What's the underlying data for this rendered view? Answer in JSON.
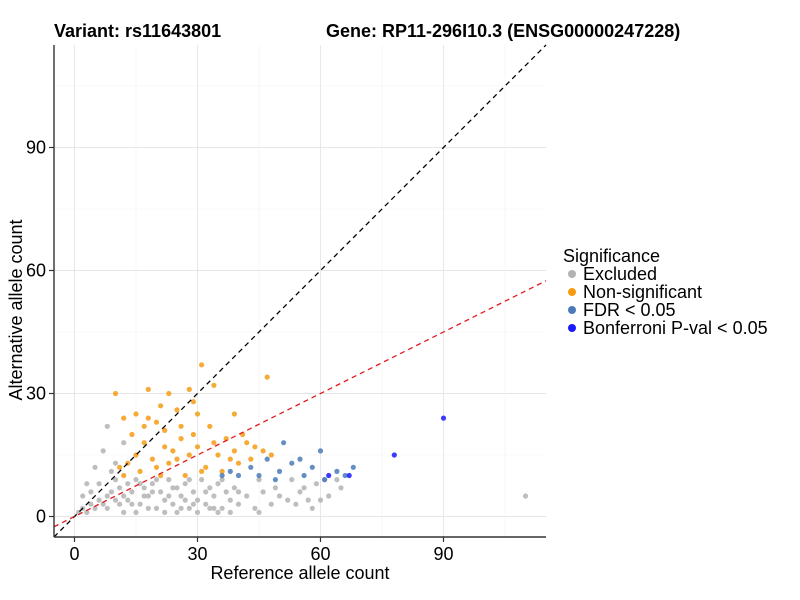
{
  "chart_data": {
    "type": "scatter",
    "title_left": "Variant: rs11643801",
    "title_right": "Gene: RP11-296I10.3 (ENSG00000247228)",
    "xlabel": "Reference allele count",
    "ylabel": "Alternative allele count",
    "xlim": [
      -5,
      115
    ],
    "ylim": [
      -5,
      115
    ],
    "xticks": [
      0,
      30,
      60,
      90
    ],
    "yticks": [
      0,
      30,
      60,
      90
    ],
    "grid": true,
    "legend": {
      "title": "Significance",
      "placement": "right",
      "entries": [
        {
          "key": "excluded",
          "label": "Excluded",
          "color": "#b3b3b3"
        },
        {
          "key": "nonsig",
          "label": "Non-significant",
          "color": "#f39c12"
        },
        {
          "key": "fdr",
          "label": "FDR < 0.05",
          "color": "#4a7bb7"
        },
        {
          "key": "bonf",
          "label": "Bonferroni P-val < 0.05",
          "color": "#1a1aff"
        }
      ]
    },
    "reference_lines": [
      {
        "name": "identity line",
        "slope": 1.0,
        "intercept": 0,
        "color": "#000000",
        "dash": "dashed"
      },
      {
        "name": "fit line",
        "slope": 0.5,
        "intercept": 0,
        "color": "#e31a1c",
        "dash": "dashed"
      }
    ],
    "series": [
      {
        "name": "Excluded",
        "color": "#b3b3b3",
        "points": [
          [
            1,
            1
          ],
          [
            2,
            2
          ],
          [
            3,
            1
          ],
          [
            4,
            3
          ],
          [
            5,
            2
          ],
          [
            6,
            4
          ],
          [
            7,
            3
          ],
          [
            8,
            5
          ],
          [
            9,
            6
          ],
          [
            10,
            4
          ],
          [
            11,
            7
          ],
          [
            12,
            5
          ],
          [
            13,
            8
          ],
          [
            14,
            6
          ],
          [
            15,
            9
          ],
          [
            16,
            3
          ],
          [
            17,
            7
          ],
          [
            18,
            5
          ],
          [
            19,
            8
          ],
          [
            20,
            2
          ],
          [
            21,
            6
          ],
          [
            22,
            4
          ],
          [
            23,
            9
          ],
          [
            24,
            3
          ],
          [
            25,
            7
          ],
          [
            26,
            5
          ],
          [
            27,
            8
          ],
          [
            28,
            2
          ],
          [
            29,
            6
          ],
          [
            30,
            4
          ],
          [
            31,
            9
          ],
          [
            32,
            3
          ],
          [
            33,
            7
          ],
          [
            34,
            5
          ],
          [
            35,
            8
          ],
          [
            36,
            2
          ],
          [
            37,
            6
          ],
          [
            38,
            4
          ],
          [
            39,
            7
          ],
          [
            40,
            3
          ],
          [
            42,
            5
          ],
          [
            44,
            2
          ],
          [
            46,
            6
          ],
          [
            48,
            3
          ],
          [
            50,
            5
          ],
          [
            52,
            4
          ],
          [
            54,
            3
          ],
          [
            56,
            7
          ],
          [
            58,
            2
          ],
          [
            60,
            4
          ],
          [
            62,
            5
          ],
          [
            4,
            6
          ],
          [
            6,
            8
          ],
          [
            8,
            2
          ],
          [
            10,
            9
          ],
          [
            12,
            1
          ],
          [
            14,
            3
          ],
          [
            16,
            8
          ],
          [
            18,
            2
          ],
          [
            20,
            9
          ],
          [
            22,
            1
          ],
          [
            24,
            7
          ],
          [
            26,
            2
          ],
          [
            28,
            9
          ],
          [
            30,
            1
          ],
          [
            32,
            6
          ],
          [
            34,
            2
          ],
          [
            36,
            9
          ],
          [
            38,
            1
          ],
          [
            40,
            6
          ],
          [
            9,
            11
          ],
          [
            7,
            16
          ],
          [
            8,
            22
          ],
          [
            5,
            12
          ],
          [
            10,
            13
          ],
          [
            3,
            8
          ],
          [
            2,
            5
          ],
          [
            12,
            18
          ],
          [
            45,
            9
          ],
          [
            49,
            7
          ],
          [
            53,
            9
          ],
          [
            55,
            6
          ],
          [
            57,
            4
          ],
          [
            59,
            8
          ],
          [
            61,
            9
          ],
          [
            64,
            9
          ],
          [
            110,
            5
          ],
          [
            65,
            7
          ],
          [
            15,
            1
          ],
          [
            25,
            1
          ],
          [
            35,
            1
          ],
          [
            45,
            1
          ],
          [
            11,
            3
          ],
          [
            13,
            4
          ],
          [
            17,
            5
          ],
          [
            19,
            6
          ],
          [
            23,
            5
          ],
          [
            27,
            4
          ],
          [
            29,
            3
          ],
          [
            33,
            2
          ]
        ]
      },
      {
        "name": "Non-significant",
        "color": "#f39c12",
        "points": [
          [
            10,
            30
          ],
          [
            31,
            37
          ],
          [
            47,
            34
          ],
          [
            18,
            31
          ],
          [
            23,
            30
          ],
          [
            28,
            31
          ],
          [
            34,
            32
          ],
          [
            21,
            27
          ],
          [
            25,
            26
          ],
          [
            15,
            25
          ],
          [
            12,
            24
          ],
          [
            20,
            23
          ],
          [
            29,
            28
          ],
          [
            33,
            22
          ],
          [
            39,
            25
          ],
          [
            37,
            19
          ],
          [
            41,
            20
          ],
          [
            44,
            17
          ],
          [
            14,
            20
          ],
          [
            17,
            18
          ],
          [
            22,
            21
          ],
          [
            26,
            19
          ],
          [
            30,
            17
          ],
          [
            35,
            15
          ],
          [
            38,
            14
          ],
          [
            24,
            16
          ],
          [
            19,
            14
          ],
          [
            13,
            13
          ],
          [
            11,
            12
          ],
          [
            16,
            11
          ],
          [
            21,
            10
          ],
          [
            27,
            10
          ],
          [
            32,
            12
          ],
          [
            36,
            11
          ],
          [
            40,
            13
          ],
          [
            43,
            14
          ],
          [
            18,
            24
          ],
          [
            23,
            13
          ],
          [
            28,
            15
          ],
          [
            31,
            11
          ],
          [
            12,
            10
          ],
          [
            15,
            15
          ],
          [
            20,
            12
          ],
          [
            25,
            14
          ],
          [
            29,
            20
          ],
          [
            34,
            18
          ],
          [
            39,
            16
          ],
          [
            42,
            18
          ],
          [
            46,
            16
          ],
          [
            48,
            15
          ],
          [
            30,
            25
          ],
          [
            26,
            22
          ],
          [
            22,
            17
          ],
          [
            17,
            22
          ]
        ]
      },
      {
        "name": "FDR < 0.05",
        "color": "#4a7bb7",
        "points": [
          [
            43,
            12
          ],
          [
            45,
            10
          ],
          [
            47,
            14
          ],
          [
            49,
            9
          ],
          [
            51,
            18
          ],
          [
            53,
            13
          ],
          [
            56,
            10
          ],
          [
            58,
            12
          ],
          [
            61,
            9
          ],
          [
            64,
            11
          ],
          [
            66,
            10
          ],
          [
            68,
            12
          ],
          [
            40,
            10
          ],
          [
            38,
            11
          ],
          [
            36,
            10
          ],
          [
            50,
            11
          ],
          [
            55,
            14
          ],
          [
            60,
            16
          ]
        ]
      },
      {
        "name": "Bonferroni P-val < 0.05",
        "color": "#1a1aff",
        "points": [
          [
            62,
            10
          ],
          [
            67,
            10
          ],
          [
            78,
            15
          ],
          [
            90,
            24
          ]
        ]
      }
    ]
  }
}
